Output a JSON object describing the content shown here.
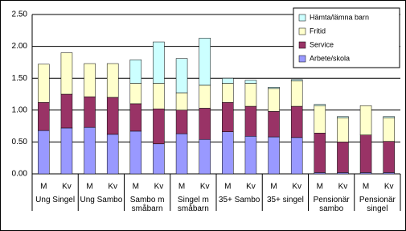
{
  "chart_data": {
    "type": "stacked_bar",
    "categories": [
      "M",
      "Kv",
      "M",
      "Kv",
      "M",
      "Kv",
      "M",
      "Kv",
      "M",
      "Kv",
      "M",
      "Kv",
      "M",
      "Kv",
      "M",
      "Kv"
    ],
    "groups": [
      "Ung Singel",
      "Ung Sambo",
      "Sambo m småbarn",
      "Singel m småbarn",
      "35+ Sambo",
      "35+ singel",
      "Pensionär sambo",
      "Pensionär singel"
    ],
    "series": [
      {
        "name": "Arbete/skola",
        "color": "#9999ff",
        "values": [
          0.68,
          0.72,
          0.73,
          0.62,
          0.67,
          0.47,
          0.63,
          0.54,
          0.66,
          0.59,
          0.58,
          0.57,
          0.02,
          0.02,
          0.02,
          0.02
        ]
      },
      {
        "name": "Service",
        "color": "#993366",
        "values": [
          0.44,
          0.53,
          0.48,
          0.58,
          0.43,
          0.55,
          0.37,
          0.49,
          0.46,
          0.47,
          0.4,
          0.49,
          0.62,
          0.48,
          0.59,
          0.49
        ]
      },
      {
        "name": "Fritid",
        "color": "#ffffcc",
        "values": [
          0.6,
          0.65,
          0.52,
          0.53,
          0.32,
          0.4,
          0.27,
          0.36,
          0.3,
          0.36,
          0.36,
          0.4,
          0.43,
          0.38,
          0.46,
          0.37
        ]
      },
      {
        "name": "Hämta/lämna barn",
        "color": "#ccffff",
        "values": [
          0,
          0,
          0,
          0,
          0.37,
          0.65,
          0.54,
          0.74,
          0.08,
          0.05,
          0.02,
          0.02,
          0.02,
          0.02,
          0,
          0.02
        ]
      }
    ],
    "ylim": [
      0,
      2.5
    ],
    "yticks": [
      {
        "value": 0,
        "label": "0.00"
      },
      {
        "value": 0.5,
        "label": "0.50"
      },
      {
        "value": 1,
        "label": "1.00"
      },
      {
        "value": 1.5,
        "label": "1.50"
      },
      {
        "value": 2,
        "label": "2.00"
      },
      {
        "value": 2.5,
        "label": "2.50"
      }
    ],
    "grid": true
  }
}
